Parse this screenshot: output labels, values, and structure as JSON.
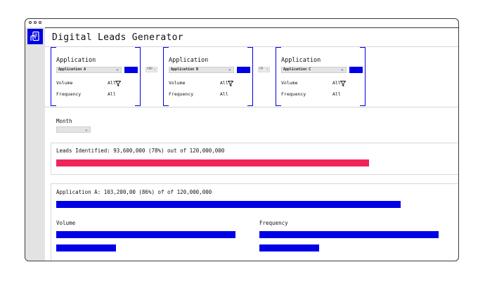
{
  "app": {
    "title": "Digital Leads Generator"
  },
  "filters": [
    {
      "title": "Application",
      "select": "Application A",
      "volume_label": "Volume",
      "volume_value": "All",
      "frequency_label": "Frequency",
      "frequency_value": "All"
    },
    {
      "title": "Application",
      "select": "Application B",
      "volume_label": "Volume",
      "volume_value": "All",
      "frequency_label": "Frequency",
      "frequency_value": "All"
    },
    {
      "title": "Application",
      "select": "Application C",
      "volume_label": "Volume",
      "volume_value": "All",
      "frequency_label": "Frequency",
      "frequency_value": "All"
    }
  ],
  "connectors": [
    "AND",
    "OR"
  ],
  "month": {
    "label": "Month",
    "value": ""
  },
  "leads": {
    "text": "Leads Identified: 93,600,000 (78%) out of 120,000,000",
    "fraction": 0.78
  },
  "application_a": {
    "text": "Application A: 103,200,00 (86%) of of 120,000,000",
    "fraction": 0.86,
    "volume_label": "Volume",
    "frequency_label": "Frequency"
  },
  "colors": {
    "accent": "#0000e6",
    "leads_bar": "#f0245a"
  },
  "icons": {
    "logo": "hand-phone-icon",
    "filter": "funnel-icon",
    "download": "download-icon",
    "dropdown": "chevron-down-icon"
  }
}
